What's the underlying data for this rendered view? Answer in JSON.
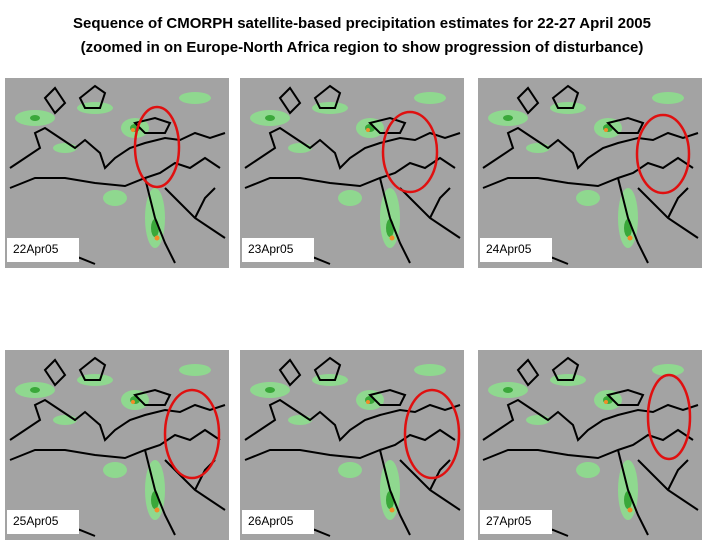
{
  "header": {
    "title_lines": [
      "Sequence of CMORPH satellite-based precipitation estimates for 22-27 April 2005",
      "(zoomed in on Europe-North Africa region to show progression of disturbance)"
    ]
  },
  "panels": [
    {
      "label": "22Apr05"
    },
    {
      "label": "23Apr05"
    },
    {
      "label": "24Apr05"
    },
    {
      "label": "25Apr05"
    },
    {
      "label": "26Apr05"
    },
    {
      "label": "27Apr05"
    }
  ]
}
